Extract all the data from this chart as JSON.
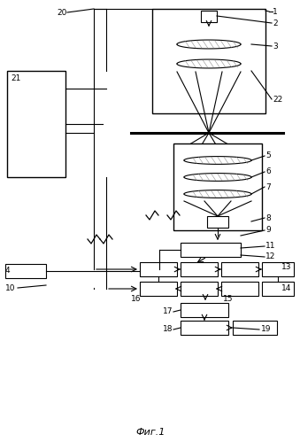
{
  "title": "Фиг.1",
  "bg": "#ffffff",
  "lc": "#000000"
}
